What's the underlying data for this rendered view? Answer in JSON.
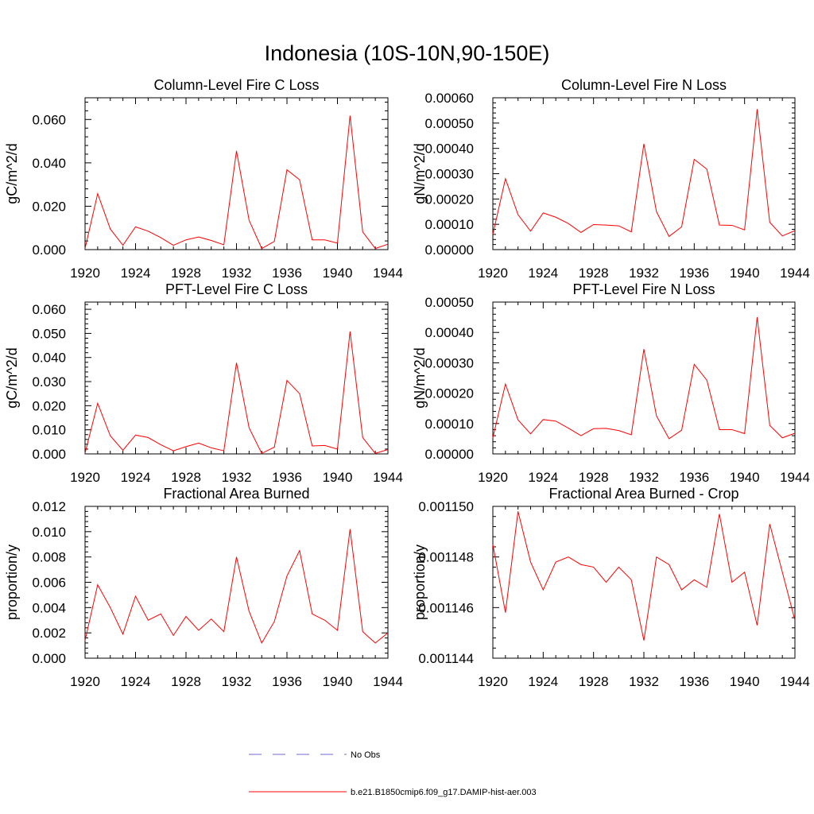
{
  "figure": {
    "title": "Indonesia (10S-10N,90-150E)"
  },
  "legend": {
    "items": [
      {
        "label": "No Obs",
        "color": "#6b6bd6",
        "style": "dashed"
      },
      {
        "label": "b.e21.B1850cmip6.f09_g17.DAMIP-hist-aer.003",
        "color": "#ff0000",
        "style": "solid"
      }
    ]
  },
  "chart_data": [
    {
      "type": "line",
      "title": "Column-Level Fire C Loss",
      "ylabel": "gC/m^2/d",
      "xlim": [
        1920,
        1944
      ],
      "ylim": [
        0,
        0.07
      ],
      "xticks": [
        "1920",
        "1924",
        "1928",
        "1932",
        "1936",
        "1940",
        "1944"
      ],
      "yticks": [
        "0.000",
        "0.020",
        "0.040",
        "0.060"
      ],
      "x": [
        1920,
        1921,
        1922,
        1923,
        1924,
        1925,
        1926,
        1927,
        1928,
        1929,
        1930,
        1931,
        1932,
        1933,
        1934,
        1935,
        1936,
        1937,
        1938,
        1939,
        1940,
        1941,
        1942,
        1943,
        1944
      ],
      "series": [
        {
          "name": "b.e21.B1850cmip6.f09_g17.DAMIP-hist-aer.003",
          "color": "#ff0000",
          "values": [
            0.0005,
            0.0258,
            0.0095,
            0.002,
            0.0105,
            0.0085,
            0.0055,
            0.002,
            0.0045,
            0.0058,
            0.0042,
            0.0022,
            0.0455,
            0.0135,
            0.0005,
            0.0038,
            0.0368,
            0.0322,
            0.0045,
            0.0045,
            0.003,
            0.0618,
            0.0082,
            0.0005,
            0.0025
          ]
        }
      ]
    },
    {
      "type": "line",
      "title": "Column-Level Fire N Loss",
      "ylabel": "gN/m^2/d",
      "xlim": [
        1920,
        1944
      ],
      "ylim": [
        0,
        0.0006
      ],
      "xticks": [
        "1920",
        "1924",
        "1928",
        "1932",
        "1936",
        "1940",
        "1944"
      ],
      "yticks": [
        "0.00000",
        "0.00010",
        "0.00020",
        "0.00030",
        "0.00040",
        "0.00050",
        "0.00060"
      ],
      "x": [
        1920,
        1921,
        1922,
        1923,
        1924,
        1925,
        1926,
        1927,
        1928,
        1929,
        1930,
        1931,
        1932,
        1933,
        1934,
        1935,
        1936,
        1937,
        1938,
        1939,
        1940,
        1941,
        1942,
        1943,
        1944
      ],
      "series": [
        {
          "name": "b.e21.B1850cmip6.f09_g17.DAMIP-hist-aer.003",
          "color": "#ff0000",
          "values": [
            6e-05,
            0.00028,
            0.000138,
            7.3e-05,
            0.000145,
            0.000128,
            0.000103,
            6.8e-05,
            9.9e-05,
            9.7e-05,
            9.4e-05,
            7e-05,
            0.000418,
            0.00015,
            5.2e-05,
            9e-05,
            0.000357,
            0.000318,
            9.7e-05,
            9.6e-05,
            7.8e-05,
            0.000555,
            0.000108,
            5.4e-05,
            7.5e-05
          ]
        }
      ]
    },
    {
      "type": "line",
      "title": "PFT-Level Fire C Loss",
      "ylabel": "gC/m^2/d",
      "xlim": [
        1920,
        1944
      ],
      "ylim": [
        0,
        0.063
      ],
      "xticks": [
        "1920",
        "1924",
        "1928",
        "1932",
        "1936",
        "1940",
        "1944"
      ],
      "yticks": [
        "0.000",
        "0.010",
        "0.020",
        "0.030",
        "0.040",
        "0.050",
        "0.060"
      ],
      "x": [
        1920,
        1921,
        1922,
        1923,
        1924,
        1925,
        1926,
        1927,
        1928,
        1929,
        1930,
        1931,
        1932,
        1933,
        1934,
        1935,
        1936,
        1937,
        1938,
        1939,
        1940,
        1941,
        1942,
        1943,
        1944
      ],
      "series": [
        {
          "name": "b.e21.B1850cmip6.f09_g17.DAMIP-hist-aer.003",
          "color": "#ff0000",
          "values": [
            0.0003,
            0.021,
            0.0075,
            0.0015,
            0.0078,
            0.0068,
            0.0038,
            0.0013,
            0.003,
            0.0045,
            0.0025,
            0.0013,
            0.0378,
            0.0108,
            0.0002,
            0.0028,
            0.0305,
            0.025,
            0.0033,
            0.0035,
            0.002,
            0.0508,
            0.0068,
            0.0002,
            0.0018
          ]
        }
      ]
    },
    {
      "type": "line",
      "title": "PFT-Level Fire N Loss",
      "ylabel": "gN/m^2/d",
      "xlim": [
        1920,
        1944
      ],
      "ylim": [
        0,
        0.0005
      ],
      "xticks": [
        "1920",
        "1924",
        "1928",
        "1932",
        "1936",
        "1940",
        "1944"
      ],
      "yticks": [
        "0.00000",
        "0.00010",
        "0.00020",
        "0.00030",
        "0.00040",
        "0.00050"
      ],
      "x": [
        1920,
        1921,
        1922,
        1923,
        1924,
        1925,
        1926,
        1927,
        1928,
        1929,
        1930,
        1931,
        1932,
        1933,
        1934,
        1935,
        1936,
        1937,
        1938,
        1939,
        1940,
        1941,
        1942,
        1943,
        1944
      ],
      "series": [
        {
          "name": "b.e21.B1850cmip6.f09_g17.DAMIP-hist-aer.003",
          "color": "#ff0000",
          "values": [
            5.3e-05,
            0.00023,
            0.000112,
            6.6e-05,
            0.000113,
            0.000108,
            8.5e-05,
            6e-05,
            8.3e-05,
            8.4e-05,
            7.7e-05,
            6.3e-05,
            0.000345,
            0.000125,
            5e-05,
            7.8e-05,
            0.000295,
            0.000243,
            8e-05,
            8e-05,
            6.7e-05,
            0.00045,
            9.4e-05,
            5.3e-05,
            6.8e-05
          ]
        }
      ]
    },
    {
      "type": "line",
      "title": "Fractional Area Burned",
      "ylabel": "proportion/y",
      "xlim": [
        1920,
        1944
      ],
      "ylim": [
        0,
        0.012
      ],
      "xticks": [
        "1920",
        "1924",
        "1928",
        "1932",
        "1936",
        "1940",
        "1944"
      ],
      "yticks": [
        "0.000",
        "0.002",
        "0.004",
        "0.006",
        "0.008",
        "0.010",
        "0.012"
      ],
      "x": [
        1920,
        1921,
        1922,
        1923,
        1924,
        1925,
        1926,
        1927,
        1928,
        1929,
        1930,
        1931,
        1932,
        1933,
        1934,
        1935,
        1936,
        1937,
        1938,
        1939,
        1940,
        1941,
        1942,
        1943,
        1944
      ],
      "series": [
        {
          "name": "b.e21.B1850cmip6.f09_g17.DAMIP-hist-aer.003",
          "color": "#ff0000",
          "values": [
            0.0014,
            0.0058,
            0.004,
            0.0019,
            0.0049,
            0.003,
            0.0035,
            0.0018,
            0.0033,
            0.0022,
            0.0031,
            0.0021,
            0.008,
            0.0037,
            0.0012,
            0.0029,
            0.0065,
            0.0085,
            0.0035,
            0.003,
            0.0022,
            0.0102,
            0.0021,
            0.0012,
            0.002
          ]
        }
      ]
    },
    {
      "type": "line",
      "title": "Fractional Area Burned - Crop",
      "ylabel": "proportion/y",
      "xlim": [
        1920,
        1944
      ],
      "ylim": [
        0.001144,
        0.00115
      ],
      "xticks": [
        "1920",
        "1924",
        "1928",
        "1932",
        "1936",
        "1940",
        "1944"
      ],
      "yticks": [
        "0.001144",
        "0.001146",
        "0.001148",
        "0.001150"
      ],
      "x": [
        1920,
        1921,
        1922,
        1923,
        1924,
        1925,
        1926,
        1927,
        1928,
        1929,
        1930,
        1931,
        1932,
        1933,
        1934,
        1935,
        1936,
        1937,
        1938,
        1939,
        1940,
        1941,
        1942,
        1943,
        1944
      ],
      "series": [
        {
          "name": "b.e21.B1850cmip6.f09_g17.DAMIP-hist-aer.003",
          "color": "#ff0000",
          "values": [
            0.0011485,
            0.0011458,
            0.0011498,
            0.0011478,
            0.0011467,
            0.0011478,
            0.001148,
            0.0011477,
            0.0011476,
            0.001147,
            0.0011476,
            0.0011471,
            0.0011447,
            0.001148,
            0.0011477,
            0.0011467,
            0.0011471,
            0.0011468,
            0.0011497,
            0.001147,
            0.0011474,
            0.0011453,
            0.0011493,
            0.0011474,
            0.0011455
          ]
        }
      ]
    }
  ]
}
